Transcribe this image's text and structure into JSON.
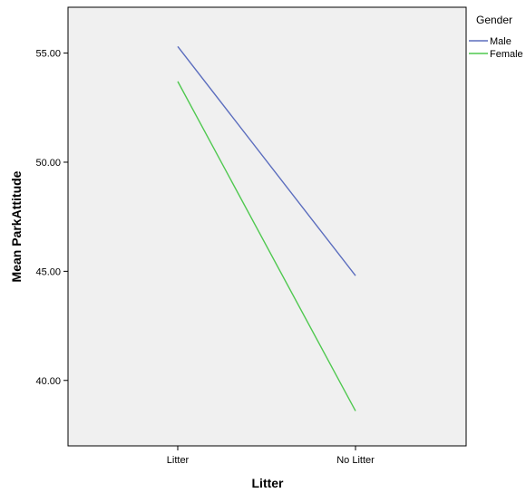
{
  "chart_data": {
    "type": "line",
    "xlabel": "Litter",
    "ylabel": "Mean ParkAttitude",
    "categories": [
      "Litter",
      "No Litter"
    ],
    "ylim": [
      37,
      57.1
    ],
    "yticks": [
      40,
      45,
      50,
      55
    ],
    "ytick_labels": [
      "40.00",
      "45.00",
      "50.00",
      "55.00"
    ],
    "grid": false,
    "legend": {
      "title": "Gender",
      "placement": "top-right-outside"
    },
    "series": [
      {
        "name": "Male",
        "values": [
          55.3,
          44.8
        ],
        "color": "#5b6dbe"
      },
      {
        "name": "Female",
        "values": [
          53.7,
          38.6
        ],
        "color": "#4fc84f"
      }
    ],
    "plot_background": "#f0f0f0"
  }
}
